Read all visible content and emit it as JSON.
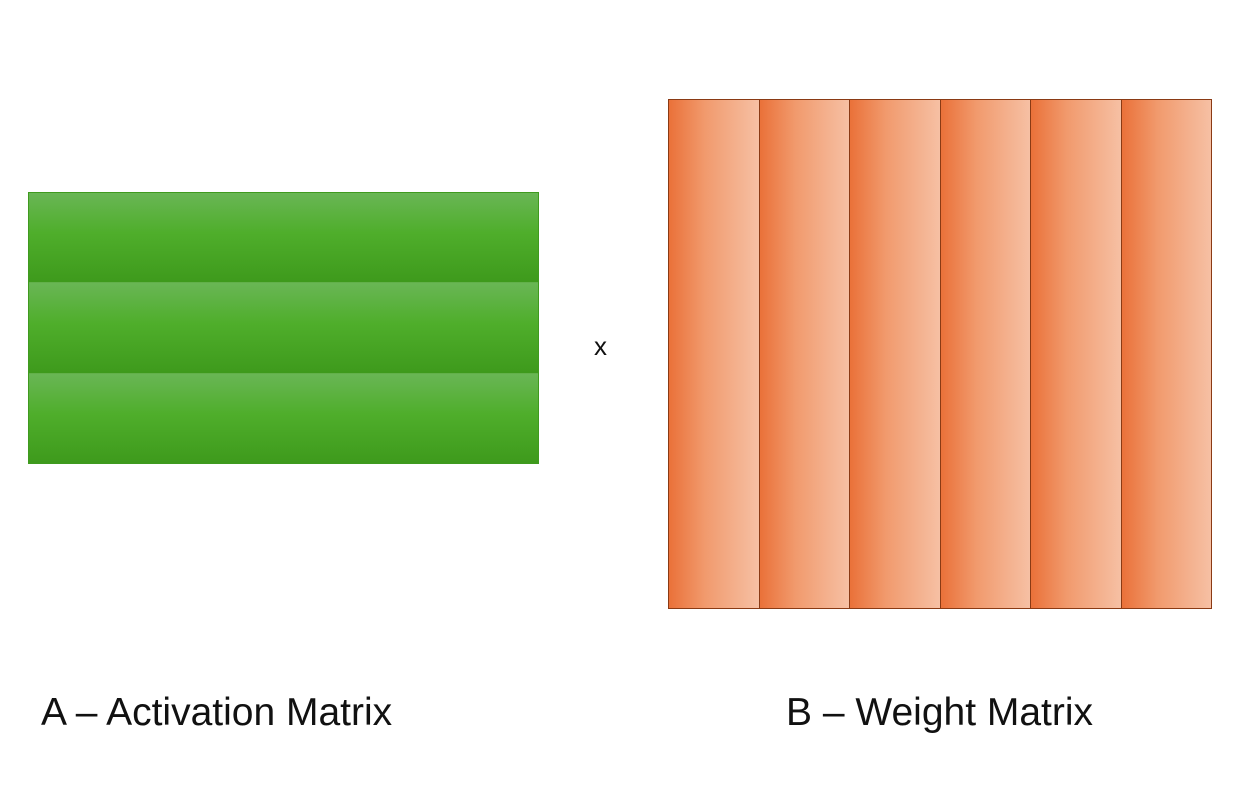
{
  "diagram": {
    "operator": "x",
    "matrix_a": {
      "label": "A – Activation Matrix",
      "rows": 3,
      "color": "#4fae2b"
    },
    "matrix_b": {
      "label": "B – Weight Matrix",
      "columns": 6,
      "color": "#ea7139"
    }
  }
}
